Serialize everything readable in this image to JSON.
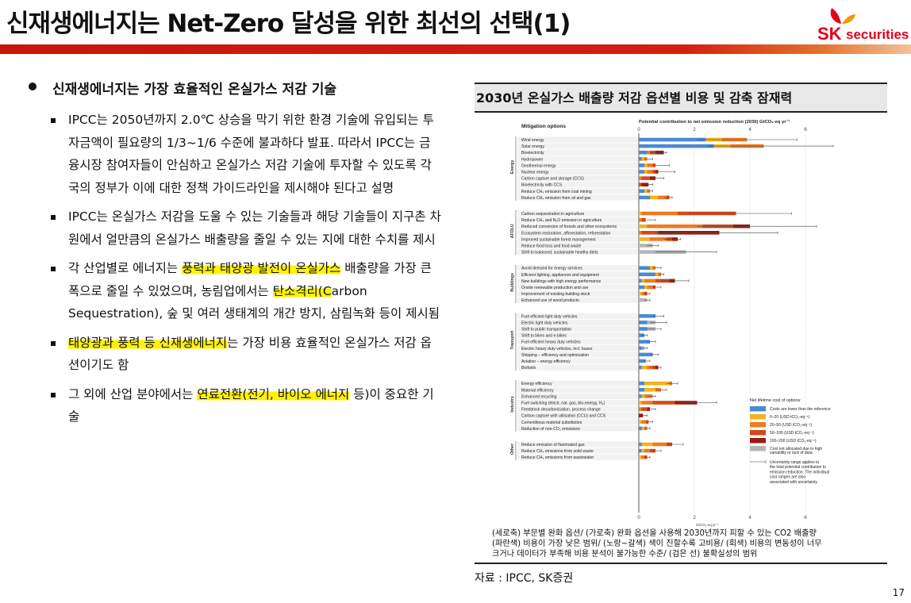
{
  "header": {
    "title": "신재생에너지는 Net-Zero 달성을 위한 최선의 선택(1)",
    "logo_sk": "SK",
    "logo_securities": "securities",
    "brand_color": "#e2001a"
  },
  "bullets": {
    "heading": "신재생에너지는 가장 효율적인 온실가스 저감 기술",
    "items": [
      [
        "IPCC는 2050년까지 2.0℃ 상승을 막기 위한 환경 기술에 유입되는 투자금액이 필요량의 1/3~1/6 수준에 불과하다 발표. 따라서 IPCC는 금융시장 참여자들이 안심하고 온실가스 저감 기술에 투자할 수 있도록 각국의 정부가 이에 대한 정책 가이드라인을 제시해야 된다고 설명"
      ],
      [
        "IPCC는 온실가스 저감을 도울 수 있는 기술들과 해당 기술들이 지구촌 차원에서 얼만큼의 온실가스 배출량을 줄일 수 있는 지에 대한 수치를 제시"
      ],
      [
        "각 산업별로 에너지는 ",
        "풍력과 태양광 발전이 온실가스",
        " 배출량을 가장 큰 폭으로 줄일 수 있었으며, 농림업에서는 ",
        "탄소격리(C",
        "arbon Sequestration), 숲 및 여러 생태계의 개간 방지, 삼림녹화 등이 제시됨"
      ],
      [
        "태양광과 풍력 등 신재생에너지",
        "는 가장 비용 효율적인 온실가스 저감 옵션이기도 함"
      ],
      [
        "그 외에 산업 분야에서는 ",
        "연료전환(전기, 바이오 에너지",
        " 등)이 중요한 기술"
      ]
    ]
  },
  "figure": {
    "title": "2030년 온실가스 배출량 저감 옵션별 비용 및 감축 잠재력",
    "caption": [
      "(세로축) 부문별 완화 옵션/ (가로축) 완화 옵션을 사용해 2030년까지 피할 수 있는 CO2 배출량",
      "(파란색) 비용이 가장 낮은 범위/ (노랑~갈색) 색이 진할수록 고비용/ (회색) 비용의 변동성이 너무",
      "크거나 데이터가 부족해 비용 분석이 불가능한 수준/ (검은 선) 불확실성의 범위"
    ],
    "source": "자료 : IPCC, SK증권",
    "page_number": "17"
  },
  "chart_data": {
    "type": "bar",
    "stacked": true,
    "orientation": "horizontal",
    "col_header": "Mitigation options",
    "xlabel": "Potential contribution to net emission reduction (2030) GtCO₂-eq yr⁻¹",
    "xlabel_bottom": "GtCO₂-eq yr⁻¹",
    "xlim": [
      0,
      6
    ],
    "xticks": [
      0,
      2,
      4,
      6
    ],
    "colors": [
      "#4a8ad0",
      "#f2b31c",
      "#ee7a22",
      "#d24a1a",
      "#9b1b12",
      "#b5b5b5"
    ],
    "legend": {
      "title": "Net lifetime cost of options:",
      "entries": [
        "Costs are lower than the reference",
        "0–20 (USD tCO₂-eq⁻¹)",
        "20–50 (USD tCO₂-eq⁻¹)",
        "50–100 (USD tCO₂-eq⁻¹)",
        "100–200 (USD tCO₂-eq⁻¹)",
        "Cost not allocated due to high variability or lack of data"
      ],
      "uncertainty_note": "Uncertainty range applies to the total potential contribution to emission reduction. The individual cost ranges are also associated with uncertainty"
    },
    "sectors": [
      {
        "name": "Energy",
        "options": [
          {
            "label": "Wind energy",
            "values": [
              2.4,
              0.6,
              0.9,
              0,
              0,
              0
            ],
            "range": [
              2.1,
              5.7
            ]
          },
          {
            "label": "Solar energy",
            "values": [
              2.7,
              0.6,
              1.2,
              0,
              0,
              0
            ],
            "range": [
              2.5,
              7.0
            ]
          },
          {
            "label": "Bioelectricity",
            "values": [
              0.3,
              0,
              0.1,
              0.2,
              0.3,
              0
            ],
            "range": [
              0.4,
              1.0
            ]
          },
          {
            "label": "Hydropower",
            "values": [
              0.1,
              0.1,
              0.1,
              0,
              0,
              0
            ],
            "range": [
              0.2,
              0.5
            ]
          },
          {
            "label": "Geothermal energy",
            "values": [
              0.2,
              0.1,
              0.2,
              0.1,
              0,
              0
            ],
            "range": [
              0.5,
              1.1
            ]
          },
          {
            "label": "Nuclear energy",
            "values": [
              0.2,
              0.1,
              0.2,
              0.1,
              0.1,
              0
            ],
            "range": [
              0.5,
              1.3
            ]
          },
          {
            "label": "Carbon capture and storage (CCS)",
            "values": [
              0,
              0,
              0.1,
              0.3,
              0.2,
              0
            ],
            "range": [
              0.5,
              0.9
            ]
          },
          {
            "label": "Bioelectricity with CCS",
            "values": [
              0,
              0,
              0,
              0.1,
              0.25,
              0
            ],
            "range": [
              0.3,
              0.5
            ]
          },
          {
            "label": "Reduce CH₄ emission from coal mining",
            "values": [
              0.2,
              0.1,
              0.1,
              0,
              0,
              0
            ],
            "range": [
              0.3,
              0.5
            ]
          },
          {
            "label": "Reduce CH₄ emission from oil and gas",
            "values": [
              0.4,
              0.3,
              0.3,
              0.1,
              0,
              0
            ],
            "range": [
              0.9,
              1.2
            ]
          }
        ]
      },
      {
        "name": "AFOLU",
        "options": [
          {
            "label": "Carbon sequestration in agriculture",
            "values": [
              0,
              0.1,
              1.3,
              2.1,
              0,
              0
            ],
            "range": [
              1.8,
              5.5
            ]
          },
          {
            "label": "Reduce CH₄ and N₂O emission in agriculture",
            "values": [
              0,
              0,
              0.1,
              0.15,
              0,
              0
            ],
            "range": [
              0.3,
              0.6
            ]
          },
          {
            "label": "Reduced conversion of forests and other ecosystems",
            "values": [
              0,
              0.3,
              2.0,
              1.1,
              0.6,
              0
            ],
            "range": [
              2.1,
              6.4
            ]
          },
          {
            "label": "Ecosystem restoration, afforestation, reforestation",
            "values": [
              0,
              0,
              0.1,
              0.6,
              2.2,
              0
            ],
            "range": [
              0.6,
              5.0
            ]
          },
          {
            "label": "Improved sustainable forest management",
            "values": [
              0,
              0.4,
              0.6,
              0.2,
              0.2,
              0
            ],
            "range": [
              0.9,
              1.5
            ]
          },
          {
            "label": "Reduce food loss and food waste",
            "values": [
              0,
              0,
              0,
              0,
              0,
              0.5
            ],
            "range": [
              0.3,
              0.7
            ]
          },
          {
            "label": "Shift to balanced, sustainable healthy diets",
            "values": [
              0,
              0,
              0,
              0,
              0,
              1.7
            ],
            "range": [
              0.6,
              2.8
            ]
          }
        ]
      },
      {
        "name": "Buildings",
        "options": [
          {
            "label": "Avoid demand for energy services",
            "values": [
              0.4,
              0.1,
              0.1,
              0,
              0,
              0
            ],
            "range": [
              0.5,
              0.8
            ]
          },
          {
            "label": "Efficient lighting, appliances and equipment",
            "values": [
              0.6,
              0.1,
              0.1,
              0,
              0,
              0
            ],
            "range": [
              0.7,
              0.9
            ]
          },
          {
            "label": "New buildings with high energy performance",
            "values": [
              0.1,
              0.1,
              0.4,
              0.5,
              0.2,
              0
            ],
            "range": [
              0.8,
              1.8
            ]
          },
          {
            "label": "Onsite renewable production and use",
            "values": [
              0.2,
              0.1,
              0.2,
              0.1,
              0,
              0
            ],
            "range": [
              0.5,
              0.8
            ]
          },
          {
            "label": "Improvement of existing building stock",
            "values": [
              0,
              0.1,
              0.1,
              0.1,
              0,
              0
            ],
            "range": [
              0.2,
              0.4
            ]
          },
          {
            "label": "Enhanced use of wood products",
            "values": [
              0,
              0,
              0,
              0,
              0,
              0.3
            ],
            "range": [
              0.2,
              0.4
            ]
          }
        ]
      },
      {
        "name": "Transport",
        "options": [
          {
            "label": "Fuel efficient light duty vehicles",
            "values": [
              0.6,
              0,
              0,
              0,
              0,
              0
            ],
            "range": [
              0.5,
              0.9
            ]
          },
          {
            "label": "Electric light duty vehicles",
            "values": [
              0.3,
              0,
              0,
              0,
              0,
              0.3
            ],
            "range": [
              0.4,
              1.0
            ]
          },
          {
            "label": "Shift to public transportation",
            "values": [
              0.3,
              0,
              0,
              0,
              0,
              0.3
            ],
            "range": [
              0.3,
              0.8
            ]
          },
          {
            "label": "Shift to bikes and e-bikes",
            "values": [
              0.2,
              0,
              0,
              0,
              0,
              0
            ],
            "range": [
              0.1,
              0.3
            ]
          },
          {
            "label": "Fuel efficient heavy duty vehicles",
            "values": [
              0.4,
              0,
              0,
              0,
              0,
              0
            ],
            "range": [
              0.3,
              0.6
            ]
          },
          {
            "label": "Electric heavy duty vehicles, incl. buses",
            "values": [
              0.1,
              0,
              0,
              0,
              0,
              0.1
            ],
            "range": [
              0.1,
              0.3
            ]
          },
          {
            "label": "Shipping – efficiency and optimization",
            "values": [
              0.5,
              0,
              0,
              0,
              0,
              0
            ],
            "range": [
              0.4,
              0.7
            ]
          },
          {
            "label": "Aviation – energy efficiency",
            "values": [
              0.25,
              0,
              0,
              0,
              0,
              0
            ],
            "range": [
              0.2,
              0.4
            ]
          },
          {
            "label": "Biofuels",
            "values": [
              0.1,
              0.2,
              0.2,
              0.1,
              0.1,
              0
            ],
            "range": [
              0.4,
              0.8
            ]
          }
        ]
      },
      {
        "name": "Industry",
        "options": [
          {
            "label": "Energy efficiency",
            "values": [
              0.2,
              0.9,
              0.1,
              0,
              0,
              0
            ],
            "range": [
              1.0,
              1.4
            ]
          },
          {
            "label": "Material efficiency",
            "values": [
              0.2,
              0.4,
              0.2,
              0,
              0,
              0
            ],
            "range": [
              0.6,
              1.0
            ]
          },
          {
            "label": "Enhanced recycling",
            "values": [
              0.1,
              0.1,
              0.3,
              0,
              0,
              0
            ],
            "range": [
              0.3,
              0.6
            ]
          },
          {
            "label": "Fuel switching (electr, nat. gas, bio-energy, H₂)",
            "values": [
              0,
              0.1,
              0.4,
              0.8,
              0.8,
              0
            ],
            "range": [
              1.5,
              2.8
            ]
          },
          {
            "label": "Feedstock decarbonisation, process change",
            "values": [
              0,
              0,
              0.1,
              0.2,
              0.1,
              0
            ],
            "range": [
              0.3,
              0.6
            ]
          },
          {
            "label": "Carbon capture with utilisation (CCU) and CCS",
            "values": [
              0,
              0,
              0,
              0,
              0.15,
              0
            ],
            "range": [
              0.1,
              0.3
            ]
          },
          {
            "label": "Cementitious material substitution",
            "values": [
              0,
              0.1,
              0.15,
              0.1,
              0,
              0
            ],
            "range": [
              0.3,
              0.5
            ]
          },
          {
            "label": "Reduction of non-CO₂ emissions",
            "values": [
              0.1,
              0.1,
              0.1,
              0,
              0,
              0
            ],
            "range": [
              0.2,
              0.4
            ]
          }
        ]
      },
      {
        "name": "Other",
        "options": [
          {
            "label": "Reduce emission of fluorinated gas",
            "values": [
              0.1,
              0.4,
              0.5,
              0.2,
              0,
              0
            ],
            "range": [
              1.0,
              1.6
            ]
          },
          {
            "label": "Reduce CH₄ emissions from solid waste",
            "values": [
              0.1,
              0.1,
              0.2,
              0.2,
              0,
              0
            ],
            "range": [
              0.5,
              0.8
            ]
          },
          {
            "label": "Reduce CH₄ emissions from wastewater",
            "values": [
              0,
              0.1,
              0.1,
              0.1,
              0,
              0
            ],
            "range": [
              0.2,
              0.4
            ]
          }
        ]
      }
    ]
  }
}
